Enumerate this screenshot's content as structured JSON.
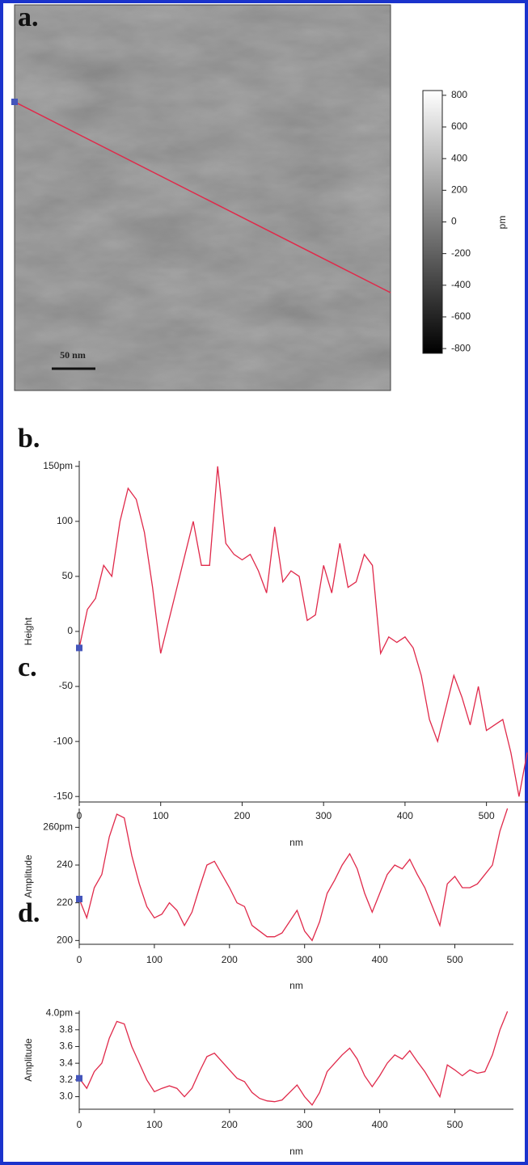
{
  "chart_data": [
    {
      "type": "image",
      "panel_label": "a.",
      "scale_bar": "50 nm",
      "colorbar_label": "pm",
      "clim": [
        -830,
        830
      ],
      "cticks": [
        800,
        600,
        400,
        200,
        0,
        -200,
        -400,
        -600,
        -800
      ],
      "line_color": "#e0294a"
    },
    {
      "type": "line",
      "panel_label": "b.",
      "ylabel": "Height",
      "xlabel": "nm",
      "color": "#e0294a",
      "xlim": [
        0,
        551
      ],
      "ylim": [
        -155,
        155
      ],
      "xticks": [
        0,
        100,
        200,
        300,
        400,
        500
      ],
      "yticks": [
        {
          "value": 150,
          "label": "150pm"
        },
        100,
        50,
        0,
        -50,
        -100,
        -150
      ],
      "x": [
        0,
        10,
        20,
        30,
        40,
        50,
        60,
        70,
        80,
        90,
        100,
        110,
        120,
        130,
        140,
        150,
        160,
        170,
        180,
        190,
        200,
        210,
        220,
        230,
        240,
        250,
        260,
        270,
        280,
        290,
        300,
        310,
        320,
        330,
        340,
        350,
        360,
        370,
        380,
        390,
        400,
        410,
        420,
        430,
        440,
        450,
        460,
        470,
        480,
        490,
        500,
        510,
        520,
        530,
        540,
        550
      ],
      "values": [
        -15,
        20,
        30,
        60,
        50,
        100,
        130,
        120,
        90,
        40,
        -20,
        10,
        40,
        70,
        100,
        60,
        60,
        150,
        80,
        70,
        65,
        70,
        55,
        35,
        95,
        45,
        55,
        50,
        10,
        15,
        60,
        35,
        80,
        40,
        45,
        70,
        60,
        -20,
        -5,
        -10,
        -5,
        -15,
        -40,
        -80,
        -100,
        -70,
        -40,
        -60,
        -85,
        -50,
        -90,
        -85,
        -80,
        -110,
        -150,
        -110
      ]
    },
    {
      "type": "line",
      "panel_label": "c.",
      "ylabel": "Amplitude",
      "xlabel": "nm",
      "color": "#e0294a",
      "xlim": [
        0,
        578
      ],
      "ylim": [
        198,
        270
      ],
      "xticks": [
        0,
        100,
        200,
        300,
        400,
        500
      ],
      "yticks": [
        {
          "value": 260,
          "label": "260pm"
        },
        240,
        220,
        200
      ],
      "x": [
        0,
        10,
        20,
        30,
        40,
        50,
        60,
        70,
        80,
        90,
        100,
        110,
        120,
        130,
        140,
        150,
        160,
        170,
        180,
        190,
        200,
        210,
        220,
        230,
        240,
        250,
        260,
        270,
        280,
        290,
        300,
        310,
        320,
        330,
        340,
        350,
        360,
        370,
        380,
        390,
        400,
        410,
        420,
        430,
        440,
        450,
        460,
        470,
        480,
        490,
        500,
        510,
        520,
        530,
        540,
        550,
        560,
        570
      ],
      "values": [
        222,
        212,
        228,
        235,
        255,
        267,
        265,
        245,
        230,
        218,
        212,
        214,
        220,
        216,
        208,
        215,
        228,
        240,
        242,
        235,
        228,
        220,
        218,
        208,
        205,
        202,
        202,
        204,
        210,
        216,
        205,
        200,
        210,
        225,
        232,
        240,
        246,
        238,
        225,
        215,
        225,
        235,
        240,
        238,
        243,
        235,
        228,
        218,
        208,
        230,
        234,
        228,
        228,
        230,
        235,
        240,
        258,
        270
      ]
    },
    {
      "type": "line",
      "panel_label": "d.",
      "ylabel": "Amplitude",
      "xlabel": "nm",
      "color": "#e0294a",
      "xlim": [
        0,
        578
      ],
      "ylim": [
        2.85,
        4.03
      ],
      "xticks": [
        0,
        100,
        200,
        300,
        400,
        500
      ],
      "yticks": [
        {
          "value": 4.0,
          "label": "4.0pm"
        },
        3.8,
        3.6,
        3.4,
        3.2,
        {
          "value": 3.0,
          "label": "3.0"
        }
      ],
      "x": [
        0,
        10,
        20,
        30,
        40,
        50,
        60,
        70,
        80,
        90,
        100,
        110,
        120,
        130,
        140,
        150,
        160,
        170,
        180,
        190,
        200,
        210,
        220,
        230,
        240,
        250,
        260,
        270,
        280,
        290,
        300,
        310,
        320,
        330,
        340,
        350,
        360,
        370,
        380,
        390,
        400,
        410,
        420,
        430,
        440,
        450,
        460,
        470,
        480,
        490,
        500,
        510,
        520,
        530,
        540,
        550,
        560,
        570
      ],
      "values": [
        3.22,
        3.1,
        3.3,
        3.4,
        3.7,
        3.9,
        3.87,
        3.6,
        3.4,
        3.2,
        3.06,
        3.1,
        3.13,
        3.1,
        3.0,
        3.1,
        3.3,
        3.48,
        3.52,
        3.42,
        3.32,
        3.22,
        3.18,
        3.05,
        2.98,
        2.95,
        2.94,
        2.96,
        3.05,
        3.14,
        3.0,
        2.9,
        3.05,
        3.3,
        3.4,
        3.5,
        3.58,
        3.45,
        3.25,
        3.12,
        3.25,
        3.4,
        3.5,
        3.45,
        3.55,
        3.42,
        3.3,
        3.15,
        3.0,
        3.38,
        3.32,
        3.25,
        3.32,
        3.28,
        3.3,
        3.5,
        3.8,
        4.02
      ]
    }
  ]
}
